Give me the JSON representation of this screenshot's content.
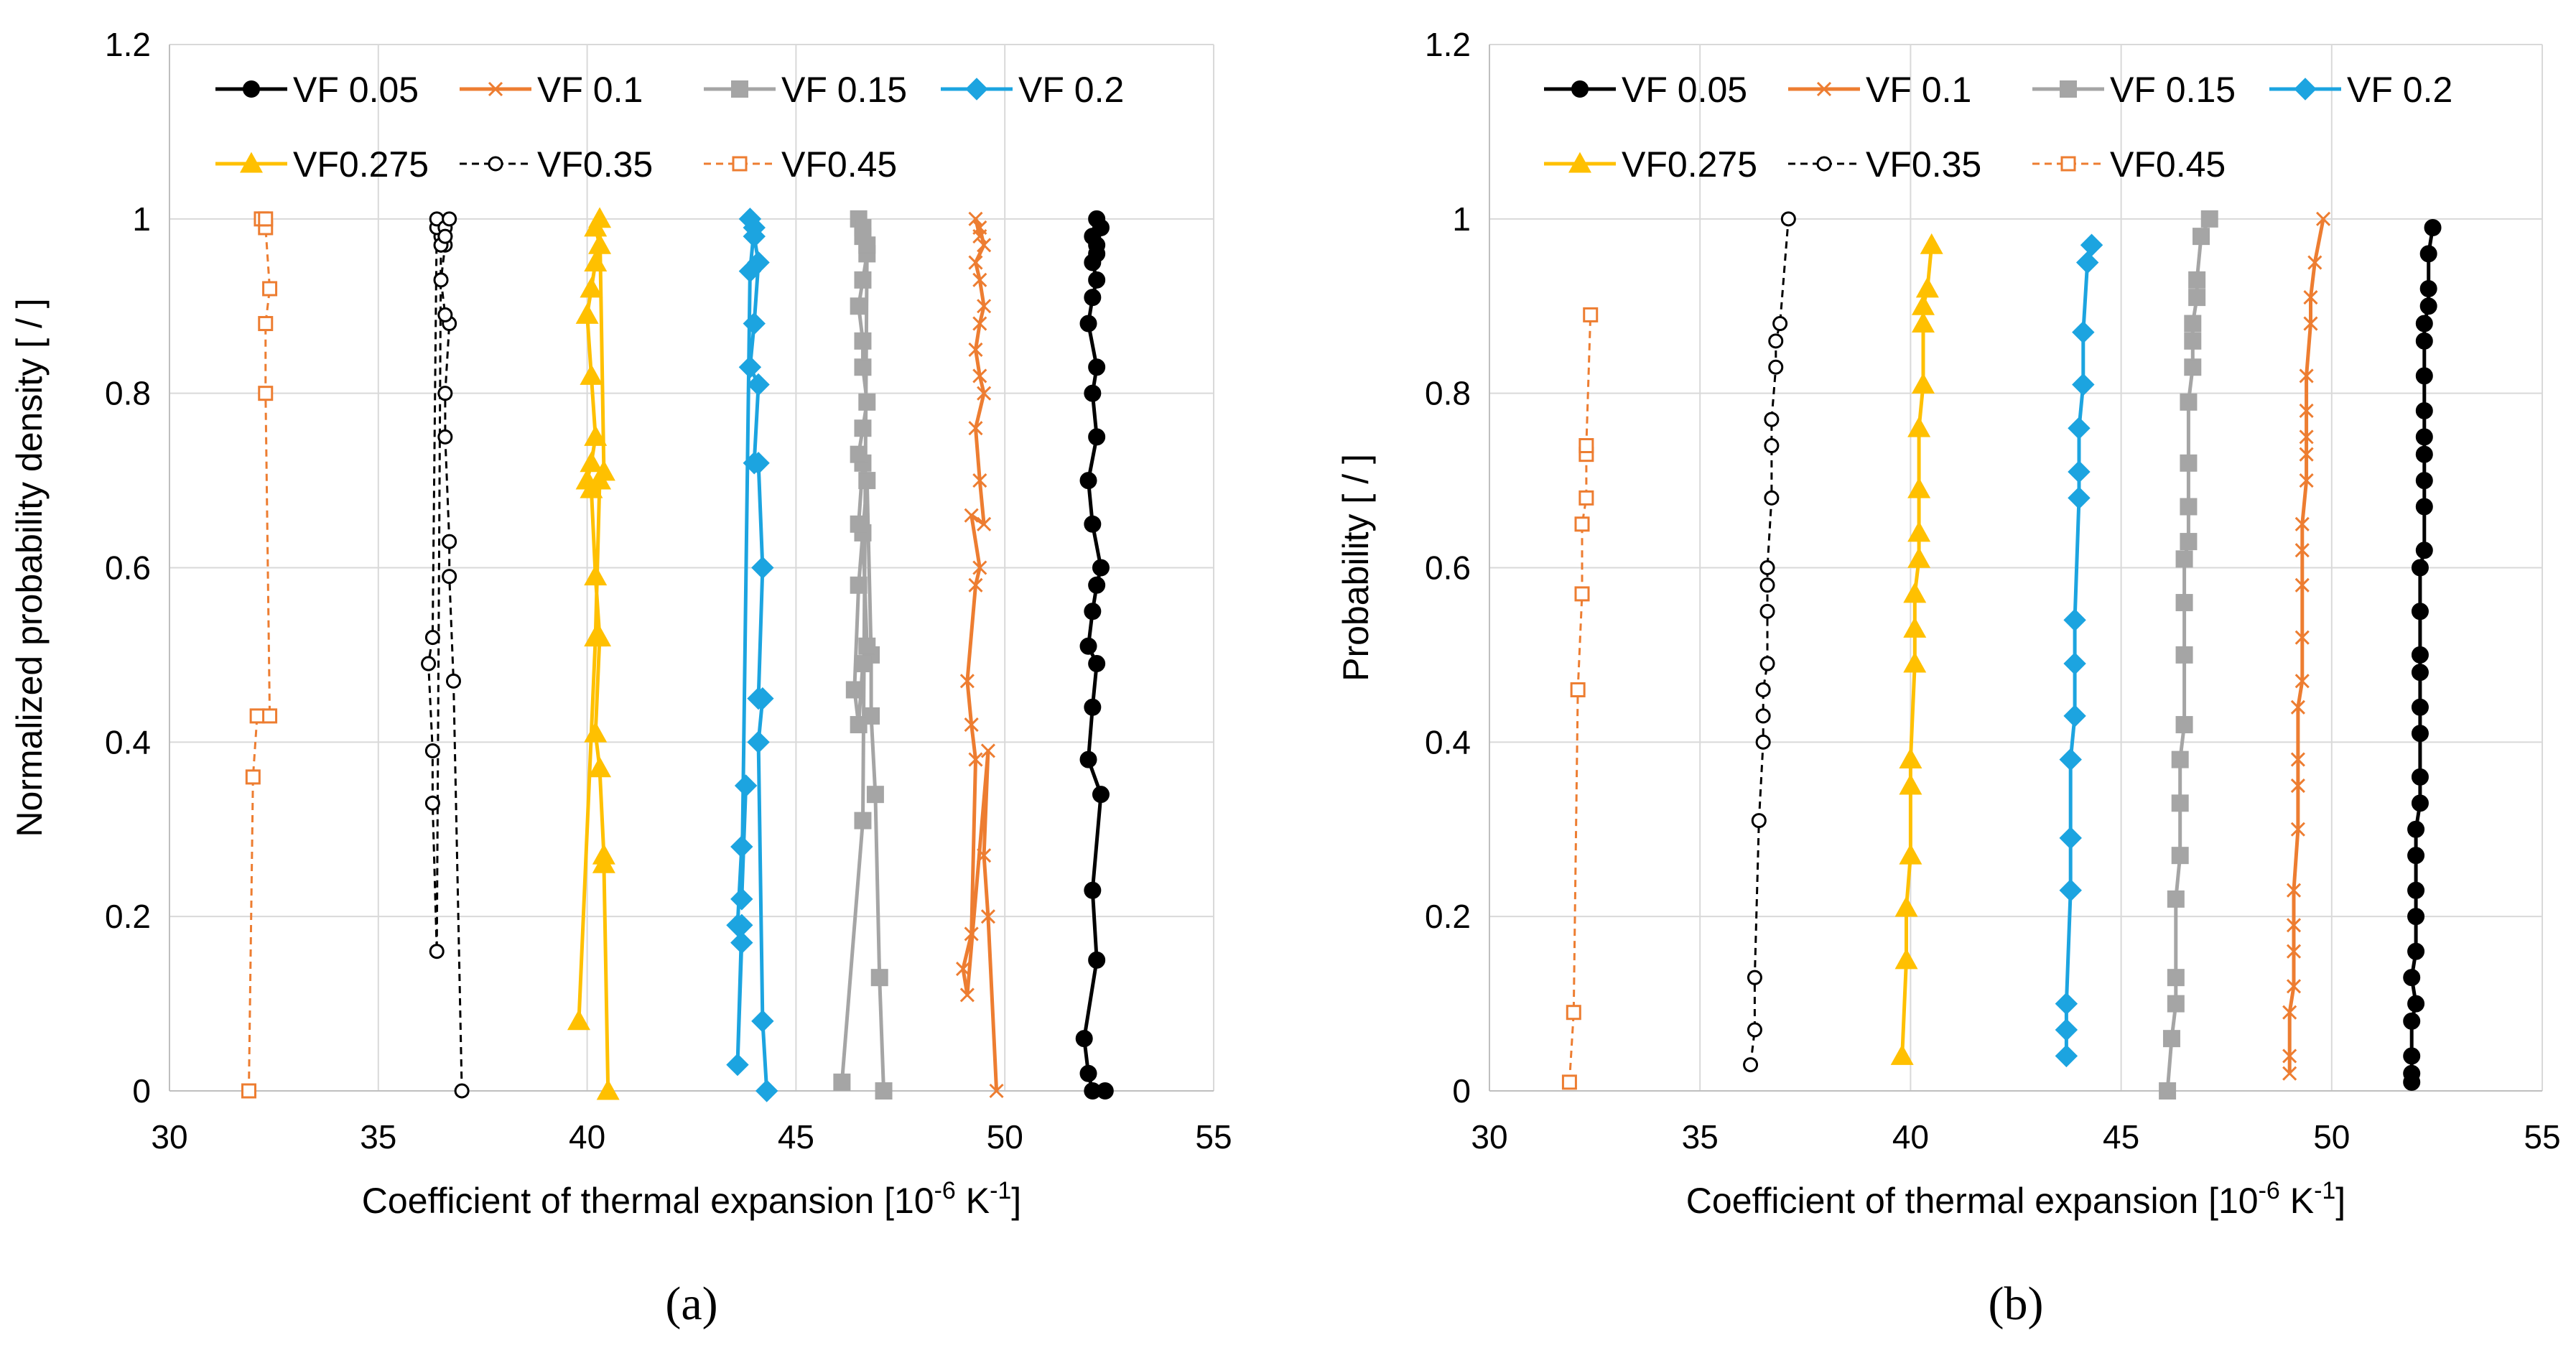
{
  "chart_data": [
    {
      "type": "line",
      "panel_label": "(a)",
      "title": "",
      "xlabel": "Coefficient of thermal expansion [10",
      "xlabel_sup1": "-6",
      "xlabel_mid": " K",
      "xlabel_sup2": "-1",
      "xlabel_end": "]",
      "ylabel": "Normalized probability density [ / ]",
      "xlim": [
        30,
        55
      ],
      "ylim": [
        0,
        1.2
      ],
      "xticks": [
        "30",
        "35",
        "40",
        "45",
        "50",
        "55"
      ],
      "yticks": [
        "0",
        "0.2",
        "0.4",
        "0.6",
        "0.8",
        "1",
        "1.2"
      ],
      "grid": true,
      "legend_position": "top",
      "series": [
        {
          "name": "VF 0.05",
          "color": "#000000",
          "marker": "circle",
          "filled": true,
          "dashed": false,
          "x": [
            52.4,
            52.1,
            52.0,
            51.9,
            52.2,
            52.1,
            52.3,
            52.0,
            52.1,
            52.2,
            52.0,
            52.1,
            52.2,
            52.3,
            52.1,
            52.0,
            52.2,
            52.1,
            52.2,
            52.0,
            52.1,
            52.2,
            52.1,
            52.2,
            52.3,
            52.2,
            52.1,
            52.2
          ],
          "y": [
            0.0,
            0.0,
            0.02,
            0.06,
            0.15,
            0.23,
            0.34,
            0.38,
            0.44,
            0.49,
            0.51,
            0.55,
            0.58,
            0.6,
            0.65,
            0.7,
            0.75,
            0.8,
            0.83,
            0.88,
            0.91,
            0.93,
            0.95,
            0.97,
            0.99,
            1.0,
            0.98,
            0.96
          ]
        },
        {
          "name": "VF 0.1",
          "color": "#ed7d31",
          "marker": "x",
          "filled": false,
          "dashed": false,
          "x": [
            49.8,
            49.6,
            49.5,
            49.6,
            49.1,
            49.0,
            49.2,
            49.3,
            49.2,
            49.1,
            49.3,
            49.4,
            49.2,
            49.5,
            49.4,
            49.3,
            49.5,
            49.4,
            49.3,
            49.4,
            49.5,
            49.4,
            49.3,
            49.5,
            49.4,
            49.3,
            49.4
          ],
          "y": [
            0.0,
            0.2,
            0.27,
            0.39,
            0.11,
            0.14,
            0.18,
            0.38,
            0.42,
            0.47,
            0.58,
            0.6,
            0.66,
            0.65,
            0.7,
            0.76,
            0.8,
            0.82,
            0.85,
            0.88,
            0.9,
            0.93,
            0.95,
            0.97,
            0.99,
            1.0,
            0.98
          ]
        },
        {
          "name": "VF 0.15",
          "color": "#a5a5a5",
          "marker": "square",
          "filled": true,
          "dashed": false,
          "x": [
            47.1,
            47.0,
            46.9,
            46.8,
            46.8,
            46.7,
            46.5,
            46.4,
            46.5,
            46.6,
            46.7,
            46.6,
            46.5,
            46.6,
            46.5,
            46.6,
            46.7,
            46.6,
            46.6,
            46.5,
            46.6,
            46.7,
            46.6,
            46.5,
            46.6,
            46.7,
            46.6,
            46.1
          ],
          "y": [
            0.0,
            0.13,
            0.34,
            0.43,
            0.5,
            0.7,
            0.58,
            0.46,
            0.42,
            0.49,
            0.51,
            0.64,
            0.65,
            0.72,
            0.73,
            0.76,
            0.79,
            0.83,
            0.86,
            0.9,
            0.93,
            0.96,
            0.98,
            1.0,
            0.99,
            0.97,
            0.31,
            0.01
          ]
        },
        {
          "name": "VF 0.2",
          "color": "#1ca4e0",
          "marker": "diamond",
          "filled": true,
          "dashed": false,
          "x": [
            44.3,
            44.2,
            44.1,
            44.2,
            44.1,
            44.2,
            44.1,
            44.0,
            44.1,
            43.9,
            44.0,
            44.1,
            44.0,
            43.9,
            44.0,
            43.9,
            43.7,
            43.8,
            43.7,
            43.6,
            43.7,
            43.6,
            43.7
          ],
          "y": [
            0.0,
            0.08,
            0.4,
            0.45,
            0.45,
            0.6,
            0.72,
            0.72,
            0.81,
            0.83,
            0.88,
            0.95,
            0.98,
            1.0,
            0.99,
            0.94,
            0.22,
            0.35,
            0.28,
            0.19,
            0.17,
            0.03,
            0.19
          ]
        },
        {
          "name": "VF0.275",
          "color": "#ffc000",
          "marker": "triangle",
          "filled": true,
          "dashed": false,
          "x": [
            40.5,
            40.4,
            40.4,
            40.3,
            40.2,
            40.3,
            40.2,
            40.1,
            40.0,
            40.1,
            40.2,
            40.1,
            40.0,
            40.1,
            40.2,
            40.3,
            40.2,
            40.3,
            40.4,
            40.3,
            40.2,
            39.8
          ],
          "y": [
            0.0,
            0.26,
            0.27,
            0.37,
            0.41,
            0.52,
            0.59,
            0.69,
            0.7,
            0.72,
            0.75,
            0.82,
            0.89,
            0.92,
            0.95,
            0.97,
            0.99,
            1.0,
            0.71,
            0.7,
            0.52,
            0.08
          ]
        },
        {
          "name": "VF0.35",
          "color": "#000000",
          "marker": "circle",
          "filled": false,
          "dashed": true,
          "x": [
            37.0,
            36.8,
            36.7,
            36.7,
            36.6,
            36.6,
            36.7,
            36.6,
            36.5,
            36.6,
            36.5,
            36.4,
            36.4,
            36.3,
            36.2,
            36.3,
            36.3,
            36.4,
            36.5,
            36.6,
            36.6,
            36.7,
            36.6
          ],
          "y": [
            0.0,
            0.47,
            0.59,
            0.63,
            0.75,
            0.8,
            0.88,
            0.89,
            0.93,
            0.97,
            0.98,
            0.99,
            1.0,
            0.52,
            0.49,
            0.39,
            0.33,
            0.16,
            0.97,
            0.98,
            0.99,
            1.0,
            0.98
          ]
        },
        {
          "name": "VF0.45",
          "color": "#ed7d31",
          "marker": "square",
          "filled": false,
          "dashed": true,
          "x": [
            31.9,
            32.0,
            32.1,
            32.4,
            32.3,
            32.3,
            32.4,
            32.3,
            32.2,
            32.3
          ],
          "y": [
            0.0,
            0.36,
            0.43,
            0.43,
            0.8,
            0.88,
            0.92,
            0.99,
            1.0,
            1.0
          ]
        }
      ]
    },
    {
      "type": "line",
      "panel_label": "(b)",
      "title": "",
      "xlabel": "Coefficient of thermal expansion [10",
      "xlabel_sup1": "-6",
      "xlabel_mid": " K",
      "xlabel_sup2": "-1",
      "xlabel_end": "]",
      "ylabel": "Probability [ / ]",
      "xlim": [
        30,
        55
      ],
      "ylim": [
        0,
        1.2
      ],
      "xticks": [
        "30",
        "35",
        "40",
        "45",
        "50",
        "55"
      ],
      "yticks": [
        "0",
        "0.2",
        "0.4",
        "0.6",
        "0.8",
        "1",
        "1.2"
      ],
      "grid": true,
      "legend_position": "top",
      "series": [
        {
          "name": "VF 0.05",
          "color": "#000000",
          "marker": "circle",
          "filled": true,
          "dashed": false,
          "x": [
            51.9,
            51.9,
            51.9,
            51.9,
            52.0,
            51.9,
            52.0,
            52.0,
            52.0,
            52.0,
            52.0,
            52.1,
            52.1,
            52.1,
            52.1,
            52.1,
            52.1,
            52.1,
            52.1,
            52.2,
            52.2,
            52.2,
            52.2,
            52.2,
            52.2,
            52.2,
            52.2,
            52.2,
            52.3,
            52.3,
            52.3,
            52.4
          ],
          "y": [
            0.01,
            0.02,
            0.04,
            0.08,
            0.1,
            0.13,
            0.16,
            0.2,
            0.23,
            0.27,
            0.3,
            0.33,
            0.36,
            0.41,
            0.44,
            0.48,
            0.5,
            0.55,
            0.6,
            0.62,
            0.67,
            0.7,
            0.73,
            0.75,
            0.78,
            0.82,
            0.86,
            0.88,
            0.9,
            0.92,
            0.96,
            0.99
          ]
        },
        {
          "name": "VF 0.1",
          "color": "#ed7d31",
          "marker": "x",
          "filled": false,
          "dashed": false,
          "x": [
            49.0,
            49.0,
            49.0,
            49.1,
            49.1,
            49.1,
            49.1,
            49.2,
            49.2,
            49.2,
            49.2,
            49.3,
            49.3,
            49.3,
            49.3,
            49.3,
            49.4,
            49.4,
            49.4,
            49.4,
            49.4,
            49.5,
            49.5,
            49.6,
            49.8
          ],
          "y": [
            0.02,
            0.04,
            0.09,
            0.12,
            0.16,
            0.19,
            0.23,
            0.3,
            0.35,
            0.38,
            0.44,
            0.47,
            0.52,
            0.58,
            0.62,
            0.65,
            0.7,
            0.73,
            0.75,
            0.78,
            0.82,
            0.88,
            0.91,
            0.95,
            1.0
          ]
        },
        {
          "name": "VF 0.15",
          "color": "#a5a5a5",
          "marker": "square",
          "filled": true,
          "dashed": false,
          "x": [
            46.1,
            46.2,
            46.3,
            46.3,
            46.3,
            46.4,
            46.4,
            46.4,
            46.5,
            46.5,
            46.5,
            46.5,
            46.6,
            46.6,
            46.6,
            46.6,
            46.7,
            46.7,
            46.7,
            46.8,
            46.8,
            46.9,
            47.1
          ],
          "y": [
            0.0,
            0.06,
            0.1,
            0.13,
            0.22,
            0.27,
            0.33,
            0.38,
            0.42,
            0.5,
            0.56,
            0.61,
            0.63,
            0.67,
            0.72,
            0.79,
            0.83,
            0.86,
            0.88,
            0.91,
            0.93,
            0.98,
            1.0
          ]
        },
        {
          "name": "VF 0.2",
          "color": "#1ca4e0",
          "marker": "diamond",
          "filled": true,
          "dashed": false,
          "x": [
            43.7,
            43.7,
            43.7,
            43.8,
            43.8,
            43.8,
            43.9,
            43.9,
            43.9,
            44.0,
            44.0,
            44.0,
            44.1,
            44.1,
            44.2,
            44.3
          ],
          "y": [
            0.04,
            0.07,
            0.1,
            0.23,
            0.29,
            0.38,
            0.43,
            0.49,
            0.54,
            0.68,
            0.71,
            0.76,
            0.81,
            0.87,
            0.95,
            0.97
          ]
        },
        {
          "name": "VF0.275",
          "color": "#ffc000",
          "marker": "triangle",
          "filled": true,
          "dashed": false,
          "x": [
            39.8,
            39.9,
            39.9,
            40.0,
            40.0,
            40.0,
            40.1,
            40.1,
            40.1,
            40.2,
            40.2,
            40.2,
            40.2,
            40.3,
            40.3,
            40.3,
            40.4,
            40.5
          ],
          "y": [
            0.04,
            0.15,
            0.21,
            0.27,
            0.35,
            0.38,
            0.49,
            0.53,
            0.57,
            0.61,
            0.64,
            0.69,
            0.76,
            0.81,
            0.88,
            0.9,
            0.92,
            0.97
          ]
        },
        {
          "name": "VF0.35",
          "color": "#000000",
          "marker": "circle",
          "filled": false,
          "dashed": true,
          "x": [
            36.2,
            36.3,
            36.3,
            36.4,
            36.5,
            36.5,
            36.5,
            36.6,
            36.6,
            36.6,
            36.6,
            36.7,
            36.7,
            36.7,
            36.8,
            36.8,
            36.9,
            37.1
          ],
          "y": [
            0.03,
            0.07,
            0.13,
            0.31,
            0.4,
            0.43,
            0.46,
            0.49,
            0.55,
            0.58,
            0.6,
            0.68,
            0.74,
            0.77,
            0.83,
            0.86,
            0.88,
            1.0
          ]
        },
        {
          "name": "VF0.45",
          "color": "#ed7d31",
          "marker": "square",
          "filled": false,
          "dashed": true,
          "x": [
            31.9,
            32.0,
            32.1,
            32.2,
            32.2,
            32.3,
            32.3,
            32.3,
            32.4
          ],
          "y": [
            0.01,
            0.09,
            0.46,
            0.57,
            0.65,
            0.68,
            0.73,
            0.74,
            0.89
          ]
        }
      ]
    }
  ]
}
